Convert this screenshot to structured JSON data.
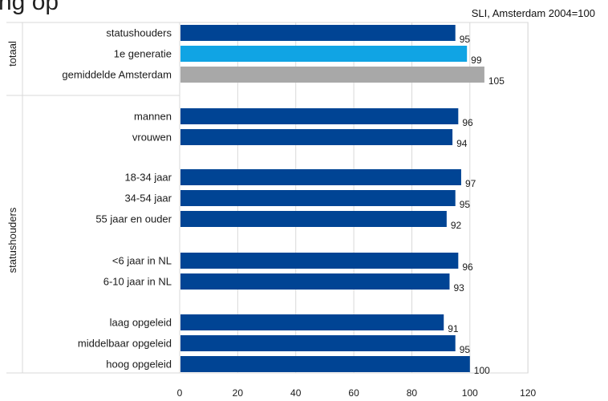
{
  "title_partial": "ng op",
  "note": "SLI, Amsterdam 2004=100",
  "chart_data": {
    "type": "bar",
    "orientation": "horizontal",
    "xlim": [
      0,
      120
    ],
    "xticks": [
      "0",
      "20",
      "40",
      "60",
      "80",
      "100",
      "120"
    ],
    "grid": true,
    "groups": [
      {
        "label": "totaal",
        "start": 0,
        "end": 2
      },
      {
        "label": "statushouders",
        "start": 3,
        "end": 12
      }
    ],
    "categories": [
      "statushouders",
      "1e generatie",
      "gemiddelde Amsterdam",
      "mannen",
      "vrouwen",
      "18-34 jaar",
      "34-54 jaar",
      "55 jaar en ouder",
      "<6 jaar in NL",
      "6-10 jaar in NL",
      "laag opgeleid",
      "middelbaar opgeleid",
      "hoog opgeleid"
    ],
    "values": [
      95,
      99,
      105,
      96,
      94,
      97,
      95,
      92,
      96,
      93,
      91,
      95,
      100
    ],
    "colors": [
      "#004494",
      "#10a4e4",
      "#a8a8a8",
      "#004494",
      "#004494",
      "#004494",
      "#004494",
      "#004494",
      "#004494",
      "#004494",
      "#004494",
      "#004494",
      "#004494"
    ]
  }
}
